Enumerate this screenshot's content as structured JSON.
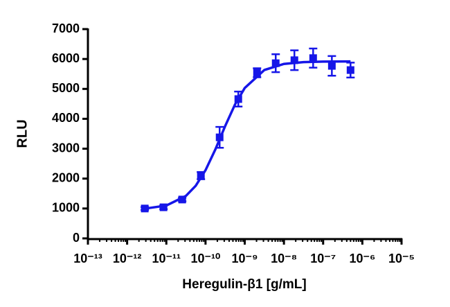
{
  "chart_data": {
    "type": "dose-response",
    "x_label": "Heregulin-β1 [g/mL]",
    "y_label": "RLU",
    "xscale": "log",
    "xlim": [
      1e-13,
      1e-05
    ],
    "xticks": [
      {
        "value": 1e-13,
        "label": "10⁻¹³"
      },
      {
        "value": 1e-12,
        "label": "10⁻¹²"
      },
      {
        "value": 1e-11,
        "label": "10⁻¹¹"
      },
      {
        "value": 1e-10,
        "label": "10⁻¹⁰"
      },
      {
        "value": 1e-09,
        "label": "10⁻⁹"
      },
      {
        "value": 1e-08,
        "label": "10⁻⁸"
      },
      {
        "value": 1e-07,
        "label": "10⁻⁷"
      },
      {
        "value": 1e-06,
        "label": "10⁻⁶"
      },
      {
        "value": 1e-05,
        "label": "10⁻⁵"
      }
    ],
    "xminorticks": [
      2e-13,
      3e-13,
      4e-13,
      5e-13,
      6e-13,
      7e-13,
      8e-13,
      9e-13,
      2e-12,
      3e-12,
      4e-12,
      5e-12,
      6e-12,
      7e-12,
      8e-12,
      9e-12,
      2e-11,
      3e-11,
      4e-11,
      5e-11,
      6e-11,
      7e-11,
      8e-11,
      9e-11,
      2e-10,
      3e-10,
      4e-10,
      5e-10,
      6e-10,
      7e-10,
      8e-10,
      9e-10,
      2e-09,
      3e-09,
      4e-09,
      5e-09,
      6e-09,
      7e-09,
      8e-09,
      9e-09,
      2e-08,
      3e-08,
      4e-08,
      5e-08,
      6e-08,
      7e-08,
      8e-08,
      9e-08,
      2e-07,
      3e-07,
      4e-07,
      5e-07,
      6e-07,
      7e-07,
      8e-07,
      9e-07,
      2e-06,
      3e-06,
      4e-06,
      5e-06,
      6e-06,
      7e-06,
      8e-06,
      9e-06
    ],
    "ylim": [
      0,
      7000
    ],
    "yticks": [
      0,
      1000,
      2000,
      3000,
      4000,
      5000,
      6000,
      7000
    ],
    "color": "#1616e8",
    "series": [
      {
        "x": [
          2.82e-12,
          8.47e-12,
          2.54e-11,
          7.62e-11,
          2.29e-10,
          6.86e-10,
          2.06e-09,
          6.17e-09,
          1.85e-08,
          5.56e-08,
          1.67e-07,
          5e-07
        ],
        "values": [
          1000,
          1040,
          1300,
          2100,
          3380,
          4660,
          5540,
          5860,
          5960,
          6030,
          5770,
          5630
        ],
        "errors": [
          50,
          60,
          60,
          120,
          350,
          250,
          150,
          300,
          330,
          320,
          330,
          250
        ]
      }
    ],
    "curve": {
      "x": [
        2.82e-12,
        1e-11,
        3.16e-11,
        5.62e-11,
        1e-10,
        1.78e-10,
        3.16e-10,
        5.62e-10,
        1e-09,
        3.16e-09,
        1e-08,
        3.16e-08,
        1e-07,
        5e-07
      ],
      "values": [
        995,
        1099,
        1420,
        1761,
        2281,
        2975,
        3753,
        4473,
        5030,
        5632,
        5835,
        5896,
        5913,
        5918
      ]
    }
  }
}
